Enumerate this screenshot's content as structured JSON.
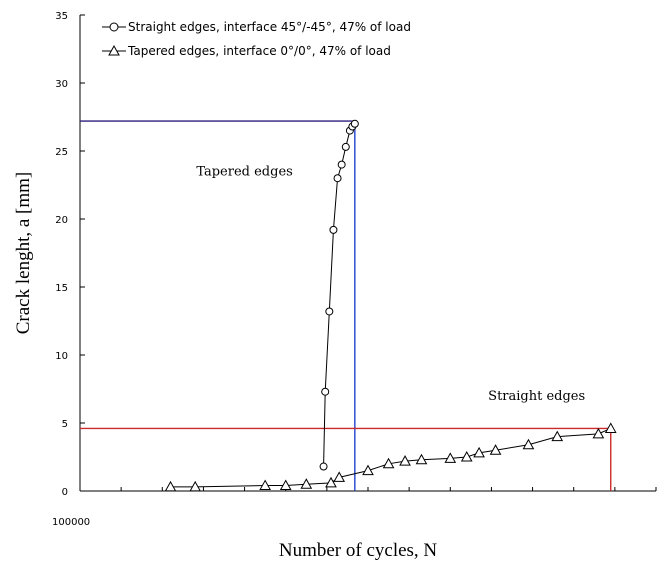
{
  "chart_data": {
    "type": "scatter",
    "xlabel": "Number of cycles, N",
    "ylabel": "Crack lenght, a [mm]",
    "xlim": [
      100000,
      800000
    ],
    "ylim": [
      0,
      35
    ],
    "yticks": [
      0,
      5,
      10,
      15,
      20,
      25,
      30,
      35
    ],
    "xtick_labels": [
      "100000"
    ],
    "grid": false,
    "legend_position": "top-left",
    "series": [
      {
        "name": "Straight edges, interface 45°/-45°, 47% of load",
        "marker": "circle",
        "color": "#000000",
        "x": [
          396000,
          398000,
          403000,
          408000,
          413000,
          418000,
          423000,
          428000,
          431000,
          434000
        ],
        "y": [
          1.8,
          7.3,
          13.2,
          19.2,
          23.0,
          24.0,
          25.3,
          26.5,
          26.8,
          27.0
        ]
      },
      {
        "name": "Tapered edges,  interface 0°/0°, 47% of load",
        "marker": "triangle",
        "color": "#000000",
        "x": [
          210000,
          240000,
          325000,
          350000,
          375000,
          405000,
          415000,
          450000,
          475000,
          495000,
          515000,
          550000,
          570000,
          585000,
          605000,
          645000,
          680000,
          730000,
          745000
        ],
        "y": [
          0.3,
          0.3,
          0.4,
          0.4,
          0.5,
          0.6,
          1.0,
          1.5,
          2.0,
          2.2,
          2.3,
          2.4,
          2.5,
          2.8,
          3.0,
          3.4,
          4.0,
          4.2,
          4.6
        ]
      }
    ],
    "annotations": [
      {
        "text": "Tapered edges",
        "x": 300000,
        "y": 23.2
      },
      {
        "text": "Straight edges",
        "x": 655000,
        "y": 6.7
      }
    ],
    "reference_lines": [
      {
        "color": "#2a1f7a",
        "orientation": "horizontal",
        "value": 27.2,
        "from": 100000,
        "to": 434000
      },
      {
        "color": "#2244cc",
        "orientation": "vertical",
        "value": 434000,
        "from": 0,
        "to": 27.2
      },
      {
        "color": "#cc2a2a",
        "orientation": "horizontal",
        "value": 4.6,
        "from": 100000,
        "to": 745000
      },
      {
        "color": "#cc2a2a",
        "orientation": "vertical",
        "value": 745000,
        "from": 0,
        "to": 4.6
      }
    ]
  }
}
